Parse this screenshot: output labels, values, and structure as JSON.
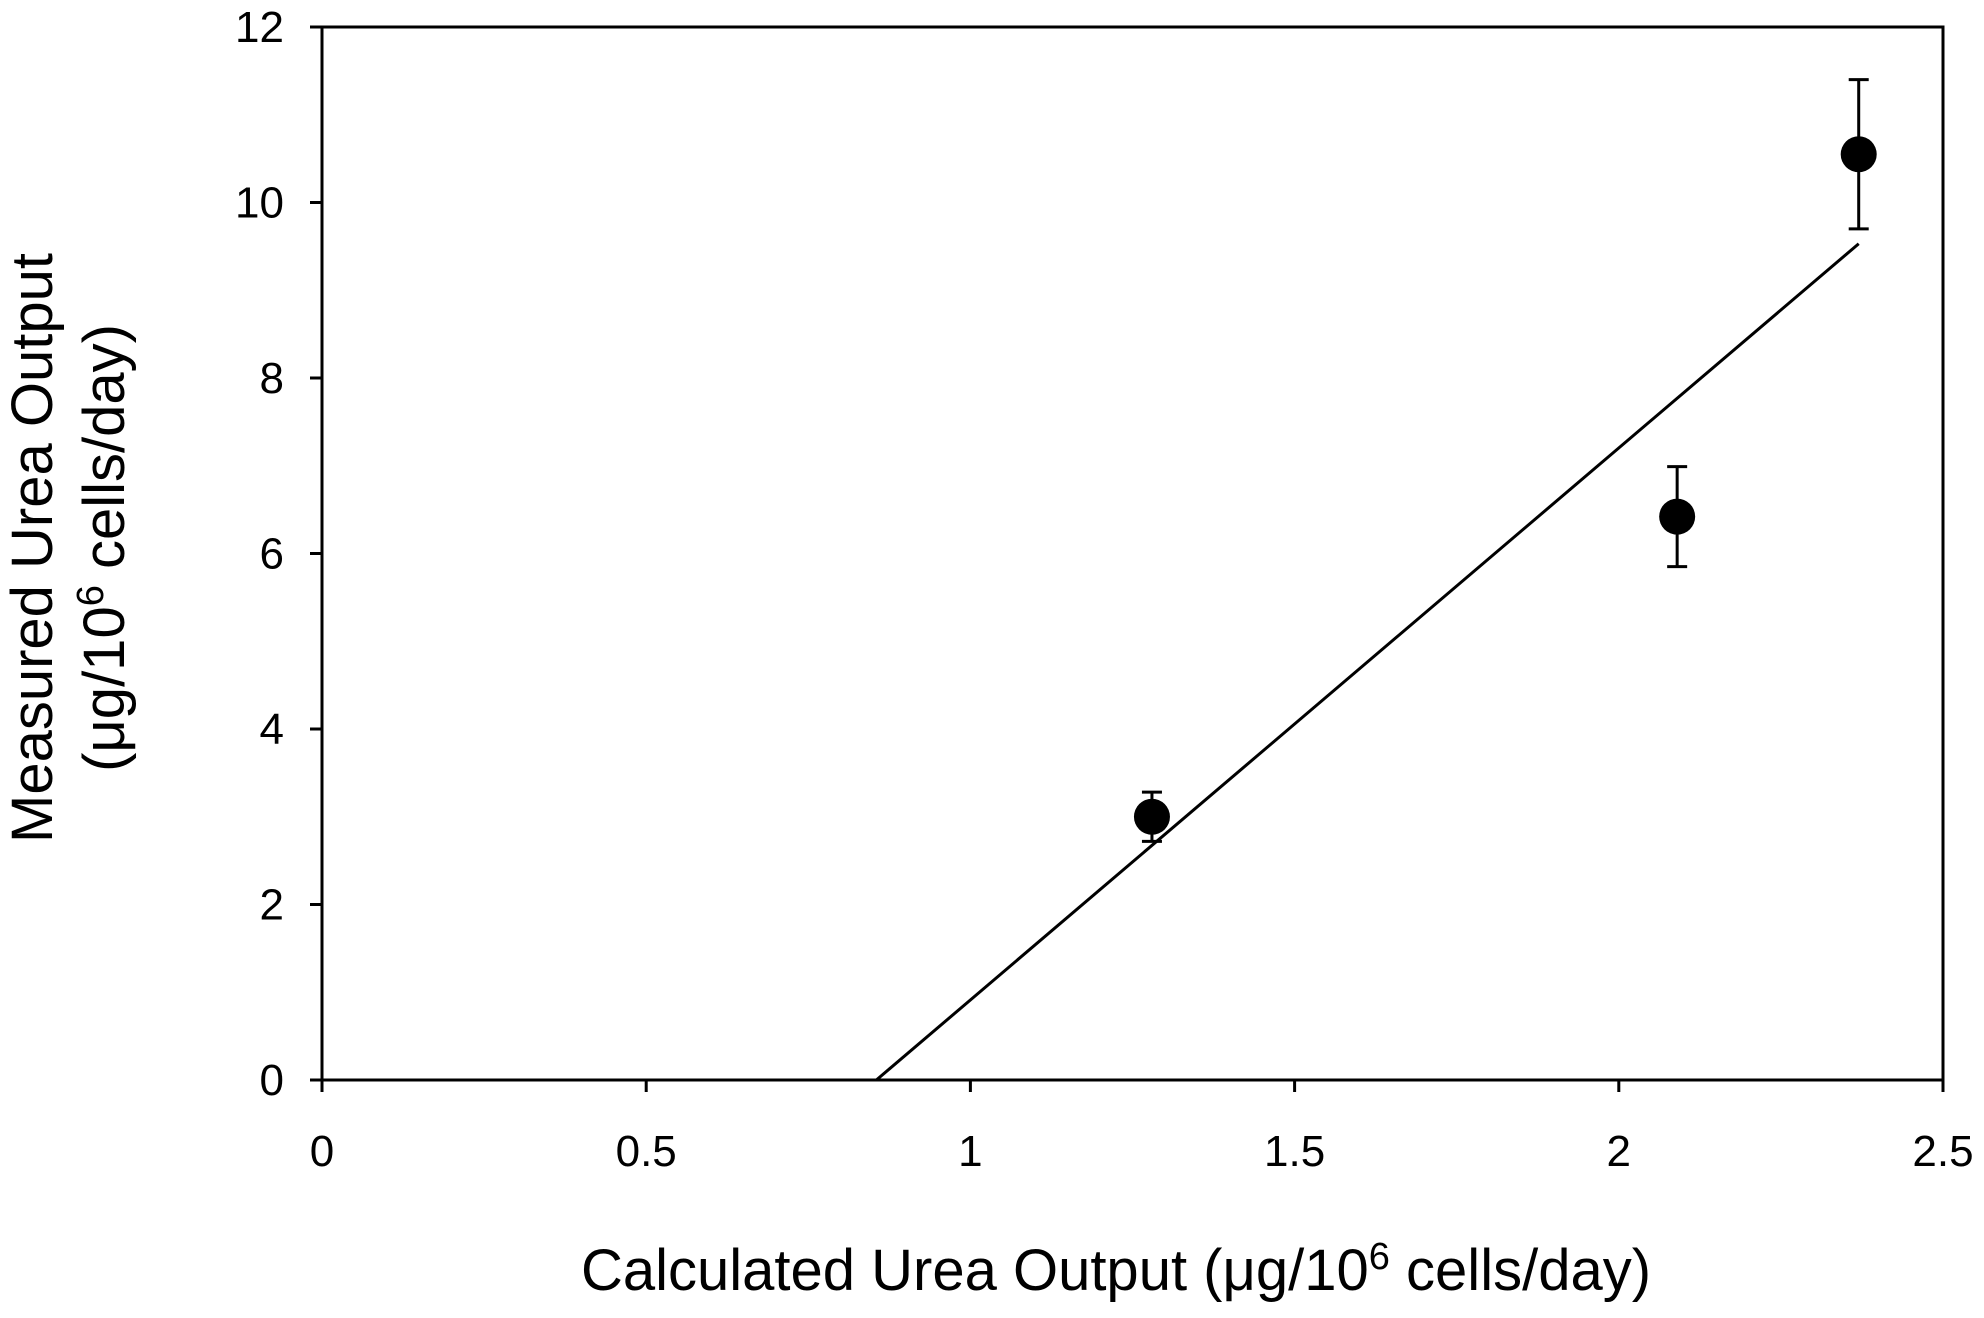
{
  "chart_data": {
    "type": "scatter",
    "title": "",
    "xlabel": {
      "prefix": "Calculated Urea Output (μg/10",
      "sup": "6",
      "suffix": " cells/day)"
    },
    "ylabel": {
      "line1": "Measured Urea Output",
      "line2_prefix": "(μg/10",
      "line2_sup": "6",
      "line2_suffix": " cells/day)"
    },
    "xlim": [
      0,
      2.5
    ],
    "ylim": [
      0,
      12
    ],
    "xticks": [
      0,
      0.5,
      1,
      1.5,
      2,
      2.5
    ],
    "xtick_labels": [
      "0",
      "0.5",
      "1",
      "1.5",
      "2",
      "2.5"
    ],
    "yticks": [
      0,
      2,
      4,
      6,
      8,
      10,
      12
    ],
    "ytick_labels": [
      "0",
      "2",
      "4",
      "6",
      "8",
      "10",
      "12"
    ],
    "grid": false,
    "legend": "none",
    "series": [
      {
        "points": [
          {
            "x": 1.28,
            "y": 3.0,
            "err": 0.28
          },
          {
            "x": 2.09,
            "y": 6.42,
            "err": 0.57
          },
          {
            "x": 2.37,
            "y": 10.55,
            "err": 0.85
          }
        ]
      }
    ],
    "trendline": {
      "x_start": 0.855,
      "y_start": 0,
      "x_end": 2.37,
      "y_end": 9.53
    },
    "colors": {
      "marker": "#000000",
      "line": "#000000"
    }
  }
}
